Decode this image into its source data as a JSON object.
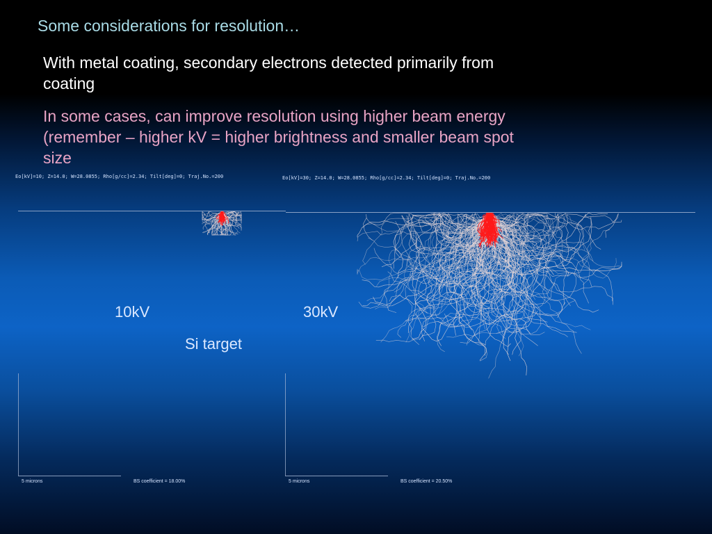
{
  "slide": {
    "title": "Some considerations for resolution…",
    "bullets": [
      "With metal coating, secondary electrons detected primarily from coating",
      "In some cases, can improve resolution using higher beam energy (remember – higher kV = higher brightness and smaller beam spot size"
    ]
  },
  "simulations": [
    {
      "params": "Eo[kV]=10;  Z=14.0;  W=28.0855;  Rho[g/cc]=2.34;  Tilt[deg]=0;  Traj.No.=200",
      "label": "10kV",
      "scale": "5 microns",
      "bs_coefficient": "BS coefficient = 18.00%"
    },
    {
      "params": "Eo[kV]=30;  Z=14.0;  W=28.0855;  Rho[g/cc]=2.34;  Tilt[deg]=0;  Traj.No.=200",
      "label": "30kV",
      "scale": "5 microns",
      "bs_coefficient": "BS coefficient = 20.50%"
    }
  ],
  "target_label": "Si target",
  "colors": {
    "title": "#a9dbe6",
    "bullet_primary": "#ffffff",
    "bullet_secondary": "#e9a4c5",
    "beam_core": "#ff1a1a",
    "trajectory": "#e8d8d8"
  }
}
